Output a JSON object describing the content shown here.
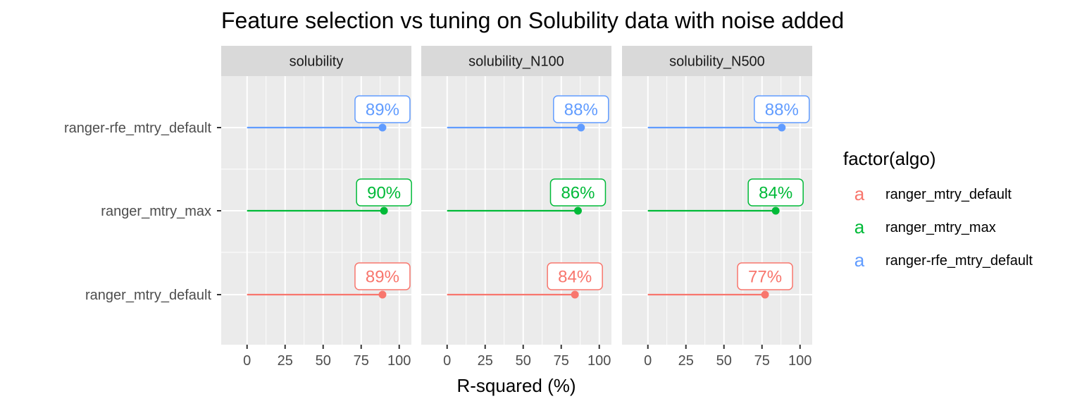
{
  "chart_data": {
    "type": "lollipop",
    "title": "Feature selection vs tuning on Solubility data with noise added",
    "xlabel": "R-squared (%)",
    "xlim": [
      -17,
      108
    ],
    "xticks": [
      0,
      25,
      50,
      75,
      100
    ],
    "xtick_labels": [
      "0",
      "25",
      "50",
      "75",
      "100"
    ],
    "grid": true,
    "categories": [
      "ranger-rfe_mtry_default",
      "ranger_mtry_max",
      "ranger_mtry_default"
    ],
    "panels": [
      {
        "name": "solubility",
        "values": {
          "ranger-rfe_mtry_default": 89,
          "ranger_mtry_max": 90,
          "ranger_mtry_default": 89
        }
      },
      {
        "name": "solubility_N100",
        "values": {
          "ranger-rfe_mtry_default": 88,
          "ranger_mtry_max": 86,
          "ranger_mtry_default": 84
        }
      },
      {
        "name": "solubility_N500",
        "values": {
          "ranger-rfe_mtry_default": 88,
          "ranger_mtry_max": 84,
          "ranger_mtry_default": 77
        }
      }
    ],
    "value_suffix": "%",
    "legend": {
      "title": "factor(algo)",
      "position": "right",
      "key_glyph": "a",
      "items": [
        {
          "name": "ranger_mtry_default",
          "color": "#F8766D"
        },
        {
          "name": "ranger_mtry_max",
          "color": "#00BA38"
        },
        {
          "name": "ranger-rfe_mtry_default",
          "color": "#619CFF"
        }
      ]
    },
    "colors": {
      "panel_bg": "#EBEBEB",
      "strip_bg": "#D9D9D9",
      "grid": "#FFFFFF"
    }
  }
}
